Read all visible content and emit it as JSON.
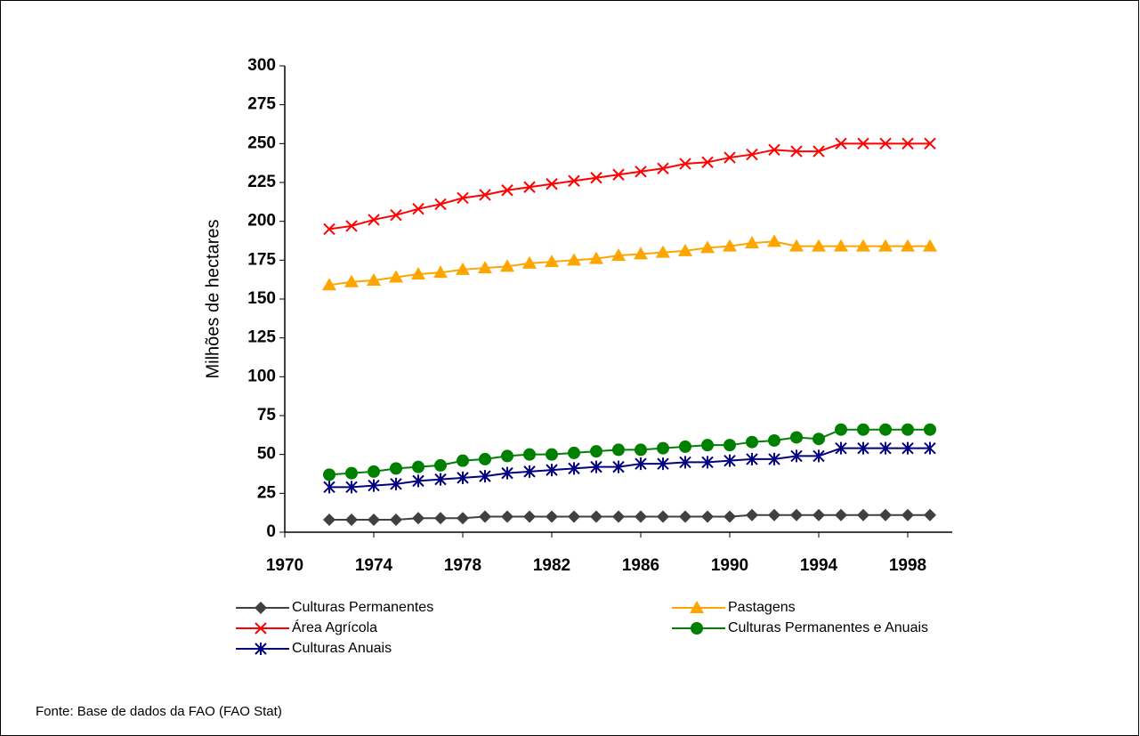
{
  "chart_data": {
    "type": "line",
    "y_label": "Milhões de hectares",
    "source": "Fonte: Base de dados da FAO (FAO Stat)",
    "x": [
      1972,
      1973,
      1974,
      1975,
      1976,
      1977,
      1978,
      1979,
      1980,
      1981,
      1982,
      1983,
      1984,
      1985,
      1986,
      1987,
      1988,
      1989,
      1990,
      1991,
      1992,
      1993,
      1994,
      1995,
      1996,
      1997,
      1998,
      1999
    ],
    "xlim": [
      1970,
      2000
    ],
    "xticks": [
      1970,
      1974,
      1978,
      1982,
      1986,
      1990,
      1994,
      1998
    ],
    "ylim": [
      0,
      300
    ],
    "yticks": [
      0,
      25,
      50,
      75,
      100,
      125,
      150,
      175,
      200,
      225,
      250,
      275,
      300
    ],
    "series": [
      {
        "name": "Culturas Permanentes",
        "color": "#404040",
        "marker": "diamond",
        "values": [
          8,
          8,
          8,
          8,
          9,
          9,
          9,
          10,
          10,
          10,
          10,
          10,
          10,
          10,
          10,
          10,
          10,
          10,
          10,
          11,
          11,
          11,
          11,
          11,
          11,
          11,
          11,
          11
        ]
      },
      {
        "name": "Pastagens",
        "color": "#ffa500",
        "marker": "triangle",
        "values": [
          159,
          161,
          162,
          164,
          166,
          167,
          169,
          170,
          171,
          173,
          174,
          175,
          176,
          178,
          179,
          180,
          181,
          183,
          184,
          186,
          187,
          184,
          184,
          184,
          184,
          184,
          184,
          184
        ]
      },
      {
        "name": "Área Agrícola",
        "color": "#ff0000",
        "marker": "x",
        "values": [
          195,
          197,
          201,
          204,
          208,
          211,
          215,
          217,
          220,
          222,
          224,
          226,
          228,
          230,
          232,
          234,
          237,
          238,
          241,
          243,
          246,
          245,
          245,
          250,
          250,
          250,
          250,
          250
        ]
      },
      {
        "name": "Culturas Permanentes e Anuais",
        "color": "#008000",
        "marker": "circle",
        "values": [
          37,
          38,
          39,
          41,
          42,
          43,
          46,
          47,
          49,
          50,
          50,
          51,
          52,
          53,
          53,
          54,
          55,
          56,
          56,
          58,
          59,
          61,
          60,
          66,
          66,
          66,
          66,
          66
        ]
      },
      {
        "name": "Culturas Anuais",
        "color": "#000080",
        "marker": "star",
        "values": [
          29,
          29,
          30,
          31,
          33,
          34,
          35,
          36,
          38,
          39,
          40,
          41,
          42,
          42,
          44,
          44,
          45,
          45,
          46,
          47,
          47,
          49,
          49,
          54,
          54,
          54,
          54,
          54
        ]
      }
    ]
  }
}
